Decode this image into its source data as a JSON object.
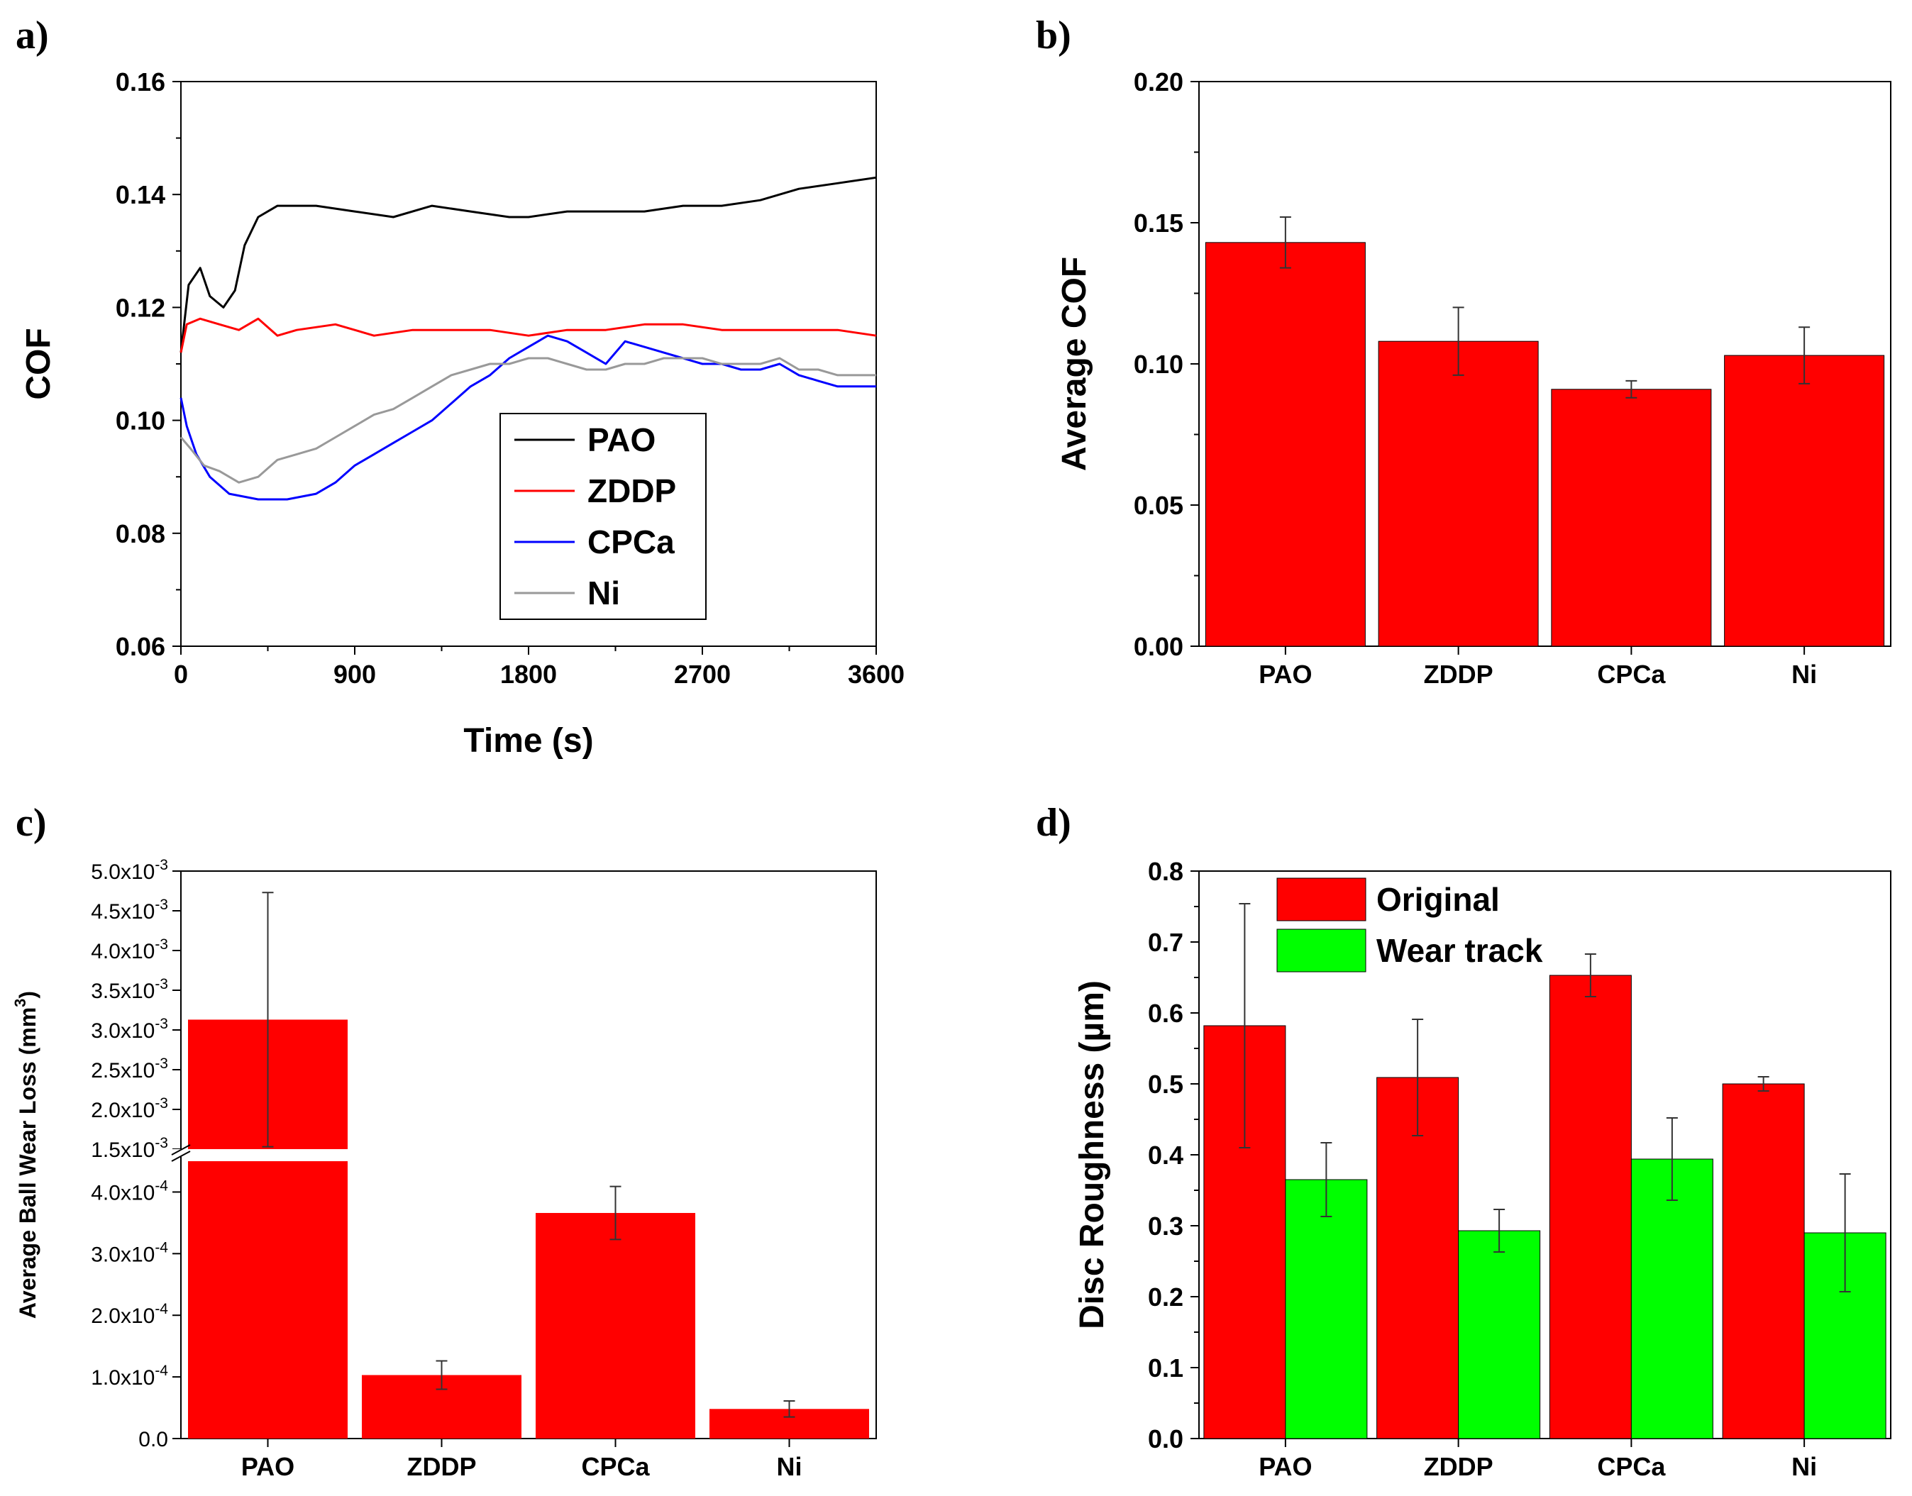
{
  "colors": {
    "red": "#ff0000",
    "green": "#00ff00",
    "black": "#000000",
    "blue": "#0000ff",
    "gray": "#999999"
  },
  "chart_data": [
    {
      "panel": "a)",
      "type": "line",
      "xlabel": "Time (s)",
      "ylabel": "COF",
      "xlim": [
        0,
        3600
      ],
      "ylim": [
        0.06,
        0.16
      ],
      "xticks": [
        "0",
        "900",
        "1800",
        "2700",
        "3600"
      ],
      "yticks": [
        "0.06",
        "0.08",
        "0.10",
        "0.12",
        "0.14",
        "0.16"
      ],
      "legend_position": "center",
      "series": [
        {
          "name": "PAO",
          "color": "#000000",
          "points": [
            [
              0,
              0.112
            ],
            [
              40,
              0.124
            ],
            [
              100,
              0.127
            ],
            [
              150,
              0.122
            ],
            [
              220,
              0.12
            ],
            [
              280,
              0.123
            ],
            [
              330,
              0.131
            ],
            [
              400,
              0.136
            ],
            [
              500,
              0.138
            ],
            [
              700,
              0.138
            ],
            [
              900,
              0.137
            ],
            [
              1100,
              0.136
            ],
            [
              1300,
              0.138
            ],
            [
              1500,
              0.137
            ],
            [
              1700,
              0.136
            ],
            [
              1800,
              0.136
            ],
            [
              2000,
              0.137
            ],
            [
              2200,
              0.137
            ],
            [
              2400,
              0.137
            ],
            [
              2600,
              0.138
            ],
            [
              2800,
              0.138
            ],
            [
              3000,
              0.139
            ],
            [
              3200,
              0.141
            ],
            [
              3400,
              0.142
            ],
            [
              3600,
              0.143
            ]
          ]
        },
        {
          "name": "ZDDP",
          "color": "#ff0000",
          "points": [
            [
              0,
              0.112
            ],
            [
              30,
              0.117
            ],
            [
              100,
              0.118
            ],
            [
              200,
              0.117
            ],
            [
              300,
              0.116
            ],
            [
              400,
              0.118
            ],
            [
              500,
              0.115
            ],
            [
              600,
              0.116
            ],
            [
              800,
              0.117
            ],
            [
              900,
              0.116
            ],
            [
              1000,
              0.115
            ],
            [
              1200,
              0.116
            ],
            [
              1400,
              0.116
            ],
            [
              1600,
              0.116
            ],
            [
              1800,
              0.115
            ],
            [
              2000,
              0.116
            ],
            [
              2200,
              0.116
            ],
            [
              2400,
              0.117
            ],
            [
              2600,
              0.117
            ],
            [
              2800,
              0.116
            ],
            [
              3000,
              0.116
            ],
            [
              3200,
              0.116
            ],
            [
              3400,
              0.116
            ],
            [
              3600,
              0.115
            ]
          ]
        },
        {
          "name": "CPCa",
          "color": "#0000ff",
          "points": [
            [
              0,
              0.104
            ],
            [
              30,
              0.099
            ],
            [
              80,
              0.094
            ],
            [
              150,
              0.09
            ],
            [
              250,
              0.087
            ],
            [
              400,
              0.086
            ],
            [
              550,
              0.086
            ],
            [
              700,
              0.087
            ],
            [
              800,
              0.089
            ],
            [
              900,
              0.092
            ],
            [
              1000,
              0.094
            ],
            [
              1100,
              0.096
            ],
            [
              1200,
              0.098
            ],
            [
              1300,
              0.1
            ],
            [
              1400,
              0.103
            ],
            [
              1500,
              0.106
            ],
            [
              1600,
              0.108
            ],
            [
              1700,
              0.111
            ],
            [
              1800,
              0.113
            ],
            [
              1900,
              0.115
            ],
            [
              2000,
              0.114
            ],
            [
              2100,
              0.112
            ],
            [
              2200,
              0.11
            ],
            [
              2300,
              0.114
            ],
            [
              2400,
              0.113
            ],
            [
              2500,
              0.112
            ],
            [
              2600,
              0.111
            ],
            [
              2700,
              0.11
            ],
            [
              2800,
              0.11
            ],
            [
              2900,
              0.109
            ],
            [
              3000,
              0.109
            ],
            [
              3100,
              0.11
            ],
            [
              3200,
              0.108
            ],
            [
              3300,
              0.107
            ],
            [
              3400,
              0.106
            ],
            [
              3500,
              0.106
            ],
            [
              3600,
              0.106
            ]
          ]
        },
        {
          "name": "Ni",
          "color": "#999999",
          "points": [
            [
              0,
              0.097
            ],
            [
              50,
              0.095
            ],
            [
              120,
              0.092
            ],
            [
              200,
              0.091
            ],
            [
              300,
              0.089
            ],
            [
              400,
              0.09
            ],
            [
              500,
              0.093
            ],
            [
              600,
              0.094
            ],
            [
              700,
              0.095
            ],
            [
              800,
              0.097
            ],
            [
              900,
              0.099
            ],
            [
              1000,
              0.101
            ],
            [
              1100,
              0.102
            ],
            [
              1200,
              0.104
            ],
            [
              1300,
              0.106
            ],
            [
              1400,
              0.108
            ],
            [
              1500,
              0.109
            ],
            [
              1600,
              0.11
            ],
            [
              1700,
              0.11
            ],
            [
              1800,
              0.111
            ],
            [
              1900,
              0.111
            ],
            [
              2000,
              0.11
            ],
            [
              2100,
              0.109
            ],
            [
              2200,
              0.109
            ],
            [
              2300,
              0.11
            ],
            [
              2400,
              0.11
            ],
            [
              2500,
              0.111
            ],
            [
              2600,
              0.111
            ],
            [
              2700,
              0.111
            ],
            [
              2800,
              0.11
            ],
            [
              2900,
              0.11
            ],
            [
              3000,
              0.11
            ],
            [
              3100,
              0.111
            ],
            [
              3200,
              0.109
            ],
            [
              3300,
              0.109
            ],
            [
              3400,
              0.108
            ],
            [
              3500,
              0.108
            ],
            [
              3600,
              0.108
            ]
          ]
        }
      ]
    },
    {
      "panel": "b)",
      "type": "bar",
      "xlabel": "",
      "ylabel": "Average COF",
      "ylim": [
        0,
        0.2
      ],
      "yticks": [
        "0.00",
        "0.05",
        "0.10",
        "0.15",
        "0.20"
      ],
      "categories": [
        "PAO",
        "ZDDP",
        "CPCa",
        "Ni"
      ],
      "values": [
        0.143,
        0.108,
        0.091,
        0.103
      ],
      "errors": [
        0.009,
        0.012,
        0.003,
        0.01
      ]
    },
    {
      "panel": "c)",
      "type": "bar",
      "xlabel": "",
      "ylabel": "Average Ball Wear Loss (mm³)",
      "ylabel_parts": [
        "Average Ball Wear Loss (mm",
        "3",
        ")"
      ],
      "broken_axis": {
        "lower_range": [
          0,
          0.00045
        ],
        "upper_range": [
          0.0015,
          0.005
        ]
      },
      "yticks_lower": [
        [
          "1.0x10",
          "-4"
        ],
        [
          "2.0x10",
          "-4"
        ],
        [
          "3.0x10",
          "-4"
        ],
        [
          "4.0x10",
          "-4"
        ]
      ],
      "ytick_zero": "0.0",
      "yticks_upper": [
        [
          "1.5x10",
          "-3"
        ],
        [
          "2.0x10",
          "-3"
        ],
        [
          "2.5x10",
          "-3"
        ],
        [
          "3.0x10",
          "-3"
        ],
        [
          "3.5x10",
          "-3"
        ],
        [
          "4.0x10",
          "-3"
        ],
        [
          "4.5x10",
          "-3"
        ],
        [
          "5.0x10",
          "-3"
        ]
      ],
      "categories": [
        "PAO",
        "ZDDP",
        "CPCa",
        "Ni"
      ],
      "values": [
        0.00313,
        0.000103,
        0.000366,
        4.8e-05
      ],
      "errors": [
        0.0016,
        2.3e-05,
        4.3e-05,
        1.3e-05
      ]
    },
    {
      "panel": "d)",
      "type": "bar",
      "xlabel": "",
      "ylabel": "Disc Roughness (µm)",
      "ylim": [
        0,
        0.8
      ],
      "yticks": [
        "0.0",
        "0.1",
        "0.2",
        "0.3",
        "0.4",
        "0.5",
        "0.6",
        "0.7",
        "0.8"
      ],
      "categories": [
        "PAO",
        "ZDDP",
        "CPCa",
        "Ni"
      ],
      "legend_position": "top-left",
      "series": [
        {
          "name": "Original",
          "color": "#ff0000",
          "values": [
            0.582,
            0.509,
            0.653,
            0.5
          ],
          "errors": [
            0.172,
            0.082,
            0.03,
            0.01
          ]
        },
        {
          "name": "Wear track",
          "color": "#00ff00",
          "values": [
            0.365,
            0.293,
            0.394,
            0.29
          ],
          "errors": [
            0.052,
            0.03,
            0.058,
            0.083
          ]
        }
      ]
    }
  ]
}
